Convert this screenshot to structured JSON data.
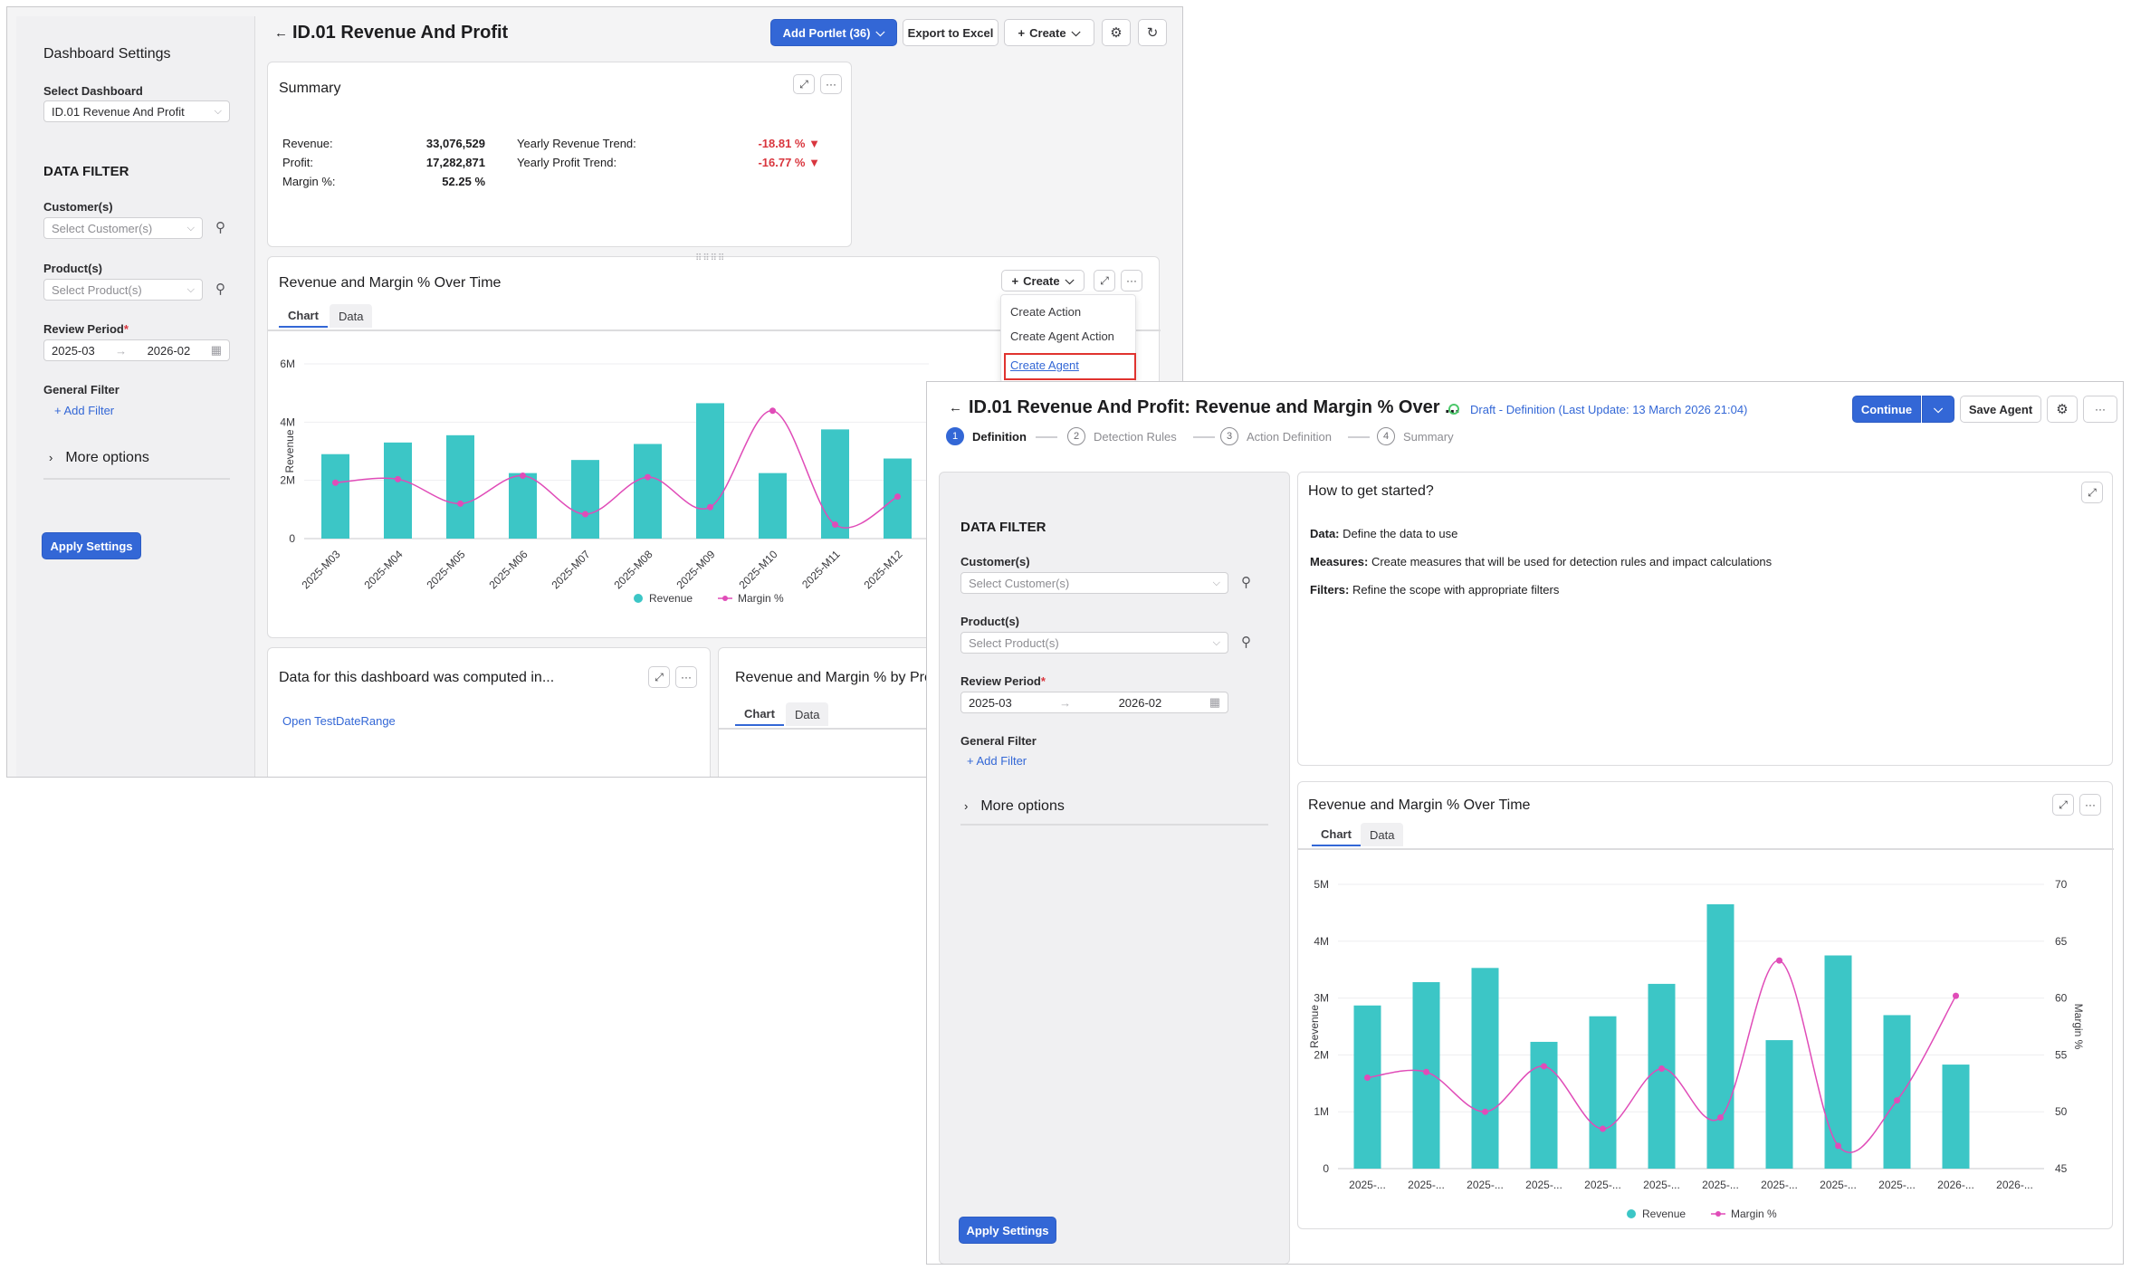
{
  "dashboard": {
    "settings_title": "Dashboard Settings",
    "select_dashboard_label": "Select Dashboard",
    "select_dashboard_value": "ID.01 Revenue And Profit",
    "data_filter_title": "DATA FILTER",
    "customers_label": "Customer(s)",
    "customers_placeholder": "Select Customer(s)",
    "products_label": "Product(s)",
    "products_placeholder": "Select Product(s)",
    "review_period_label": "Review Period",
    "review_from": "2025-03",
    "review_to": "2026-02",
    "general_filter_label": "General Filter",
    "add_filter": "Add Filter",
    "more_options": "More options",
    "apply_settings": "Apply Settings",
    "page_title": "ID.01 Revenue And Profit",
    "add_portlet": "Add Portlet (36)",
    "export_excel": "Export to Excel",
    "create": "Create",
    "summary": {
      "title": "Summary",
      "rows": [
        {
          "label": "Revenue:",
          "value": "33,076,529",
          "trend_label": "Yearly Revenue Trend:",
          "trend_value": "-18.81 %"
        },
        {
          "label": "Profit:",
          "value": "17,282,871",
          "trend_label": "Yearly Profit Trend:",
          "trend_value": "-16.77 %"
        },
        {
          "label": "Margin %:",
          "value": "52.25 %",
          "trend_label": "",
          "trend_value": ""
        }
      ]
    },
    "rm_card": {
      "title": "Revenue and Margin % Over Time",
      "create": "Create",
      "tab_chart": "Chart",
      "tab_data": "Data",
      "menu": [
        "Create Action",
        "Create Agent Action",
        "Create Agent"
      ]
    },
    "computed_card": {
      "title": "Data for this dashboard was computed in...",
      "link": "Open TestDateRange"
    },
    "product_card": {
      "title": "Revenue and Margin % by Product",
      "tab_chart": "Chart",
      "tab_data": "Data"
    }
  },
  "agent": {
    "title": "ID.01 Revenue And Profit: Revenue and Margin % Over ...",
    "status": "Draft - Definition (Last Update: 13 March 2026 21:04)",
    "continue": "Continue",
    "save_agent": "Save Agent",
    "steps": [
      {
        "num": "1",
        "label": "Definition"
      },
      {
        "num": "2",
        "label": "Detection Rules"
      },
      {
        "num": "3",
        "label": "Action Definition"
      },
      {
        "num": "4",
        "label": "Summary"
      }
    ],
    "data_filter_title": "DATA FILTER",
    "customers_label": "Customer(s)",
    "customers_placeholder": "Select Customer(s)",
    "products_label": "Product(s)",
    "products_placeholder": "Select Product(s)",
    "review_period_label": "Review Period",
    "review_from": "2025-03",
    "review_to": "2026-02",
    "general_filter_label": "General Filter",
    "add_filter": "Add Filter",
    "more_options": "More options",
    "apply_settings": "Apply Settings",
    "help": {
      "title": "How to get started?",
      "lines": [
        {
          "term": "Data:",
          "text": "Define the data to use"
        },
        {
          "term": "Measures:",
          "text": "Create measures that will be used for detection rules and impact calculations"
        },
        {
          "term": "Filters:",
          "text": "Refine the scope with appropriate filters"
        }
      ]
    },
    "chart_card": {
      "title": "Revenue and Margin % Over Time",
      "tab_chart": "Chart",
      "tab_data": "Data"
    }
  },
  "colors": {
    "accent": "#3367d6",
    "revenue": "#3cc6c6",
    "margin": "#e04cb8",
    "negative": "#d9363e",
    "highlight_box": "#e0332f",
    "status_dot": "#4cc76a"
  },
  "chart_data": [
    {
      "type": "bar",
      "title": "Revenue and Margin % Over Time",
      "categories": [
        "2025-M03",
        "2025-M04",
        "2025-M05",
        "2025-M06",
        "2025-M07",
        "2025-M08",
        "2025-M09",
        "2025-M10",
        "2025-M11",
        "2025-M12"
      ],
      "y_ticks": [
        "0",
        "2M",
        "4M",
        "6M"
      ],
      "ylabel": "Revenue",
      "ylim": [
        0,
        6000000
      ],
      "series": [
        {
          "name": "Revenue",
          "type": "bar",
          "values": [
            2900000,
            3300000,
            3550000,
            2250000,
            2700000,
            3250000,
            4650000,
            2250000,
            3750000,
            2750000
          ]
        },
        {
          "name": "Margin %",
          "type": "line",
          "values": [
            53,
            53.5,
            50,
            54,
            48.5,
            53.8,
            49.5,
            63.3,
            47,
            51
          ]
        }
      ],
      "y2lim": [
        45,
        70
      ],
      "legend": "bottom"
    },
    {
      "type": "bar",
      "title": "Revenue and Margin % Over Time",
      "categories": [
        "2025-...",
        "2025-...",
        "2025-...",
        "2025-...",
        "2025-...",
        "2025-...",
        "2025-...",
        "2025-...",
        "2025-...",
        "2025-...",
        "2026-...",
        "2026-..."
      ],
      "y_ticks": [
        "0",
        "1M",
        "2M",
        "3M",
        "4M",
        "5M"
      ],
      "y2_ticks": [
        "45",
        "50",
        "55",
        "60",
        "65",
        "70"
      ],
      "ylabel": "Revenue",
      "y2label": "Margin %",
      "ylim": [
        0,
        5000000
      ],
      "y2lim": [
        45,
        70
      ],
      "series": [
        {
          "name": "Revenue",
          "type": "bar",
          "values": [
            2870000,
            3280000,
            3530000,
            2230000,
            2680000,
            3250000,
            4650000,
            2260000,
            3750000,
            2700000,
            1830000,
            null
          ]
        },
        {
          "name": "Margin %",
          "type": "line",
          "values": [
            53,
            53.5,
            50,
            54,
            48.5,
            53.8,
            49.5,
            63.3,
            47,
            51,
            60.2,
            null
          ]
        }
      ],
      "legend": "bottom"
    }
  ]
}
